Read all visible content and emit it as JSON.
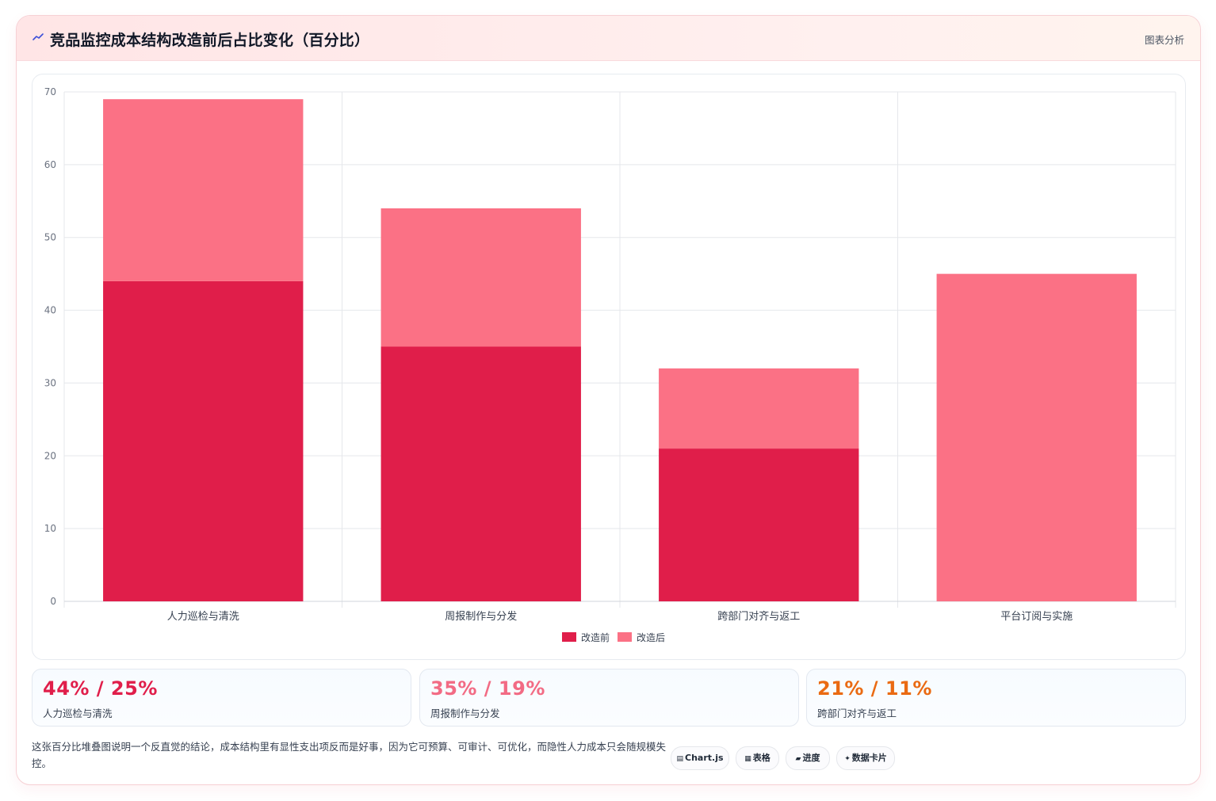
{
  "header": {
    "icon": "trend-line-icon",
    "title": "竞品监控成本结构改造前后占比变化（百分比）",
    "link": "图表分析"
  },
  "chart_data": {
    "type": "bar",
    "stacked": true,
    "categories": [
      "人力巡检与清洗",
      "周报制作与分发",
      "跨部门对齐与返工",
      "平台订阅与实施"
    ],
    "series": [
      {
        "name": "改造前",
        "values": [
          44,
          35,
          21,
          0
        ],
        "color": "#e01e4a"
      },
      {
        "name": "改造后",
        "values": [
          25,
          19,
          11,
          45
        ],
        "color": "#fb7185"
      }
    ],
    "ylim": [
      0,
      70
    ],
    "yticks": [
      0,
      10,
      20,
      30,
      40,
      50,
      60,
      70
    ],
    "grid": true,
    "legend": "bottom"
  },
  "stats": [
    {
      "value": "44% / 25%",
      "label": "人力巡检与清洗",
      "color": "#e01e4a"
    },
    {
      "value": "35% / 19%",
      "label": "周报制作与分发",
      "color": "#f26b84"
    },
    {
      "value": "21% / 11%",
      "label": "跨部门对齐与返工",
      "color": "#ea6a12"
    }
  ],
  "footer": {
    "text": "这张百分比堆叠图说明一个反直觉的结论，成本结构里有显性支出项反而是好事，因为它可预算、可审计、可优化，而隐性人力成本只会随规模失控。",
    "tags": [
      {
        "icon": "chart-icon",
        "glyph": "▤",
        "label": "Chart.js"
      },
      {
        "icon": "table-icon",
        "glyph": "▦",
        "label": "表格"
      },
      {
        "icon": "progress-icon",
        "glyph": "▰",
        "label": "进度"
      },
      {
        "icon": "sparkle-icon",
        "glyph": "✦",
        "label": "数据卡片"
      }
    ]
  }
}
